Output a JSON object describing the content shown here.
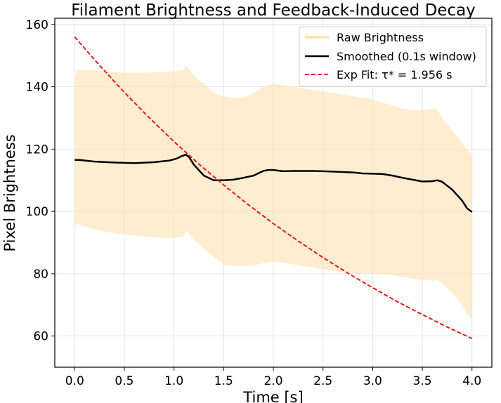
{
  "chart_data": {
    "type": "line",
    "title": "Filament Brightness and Feedback-Induced Decay",
    "xlabel": "Time [s]",
    "ylabel": "Pixel Brightness",
    "xlim": [
      -0.2,
      4.2
    ],
    "ylim": [
      50,
      162
    ],
    "xticks": [
      0.0,
      0.5,
      1.0,
      1.5,
      2.0,
      2.5,
      3.0,
      3.5,
      4.0
    ],
    "xtick_labels": [
      "0.0",
      "0.5",
      "1.0",
      "1.5",
      "2.0",
      "2.5",
      "3.0",
      "3.5",
      "4.0"
    ],
    "yticks": [
      60,
      80,
      100,
      120,
      140,
      160
    ],
    "ytick_labels": [
      "60",
      "80",
      "100",
      "120",
      "140",
      "160"
    ],
    "grid": true,
    "legend_position": "top-right",
    "series": [
      {
        "name": "Raw Brightness",
        "kind": "band",
        "color": "#ffe4b5",
        "x": [
          0.0,
          0.02,
          0.1,
          0.3,
          0.5,
          0.7,
          0.9,
          1.0,
          1.1,
          1.12,
          1.2,
          1.3,
          1.4,
          1.5,
          1.6,
          1.7,
          1.8,
          1.9,
          2.0,
          2.1,
          2.2,
          2.3,
          2.4,
          2.5,
          2.6,
          2.7,
          2.8,
          2.9,
          3.0,
          3.1,
          3.2,
          3.3,
          3.4,
          3.5,
          3.6,
          3.65,
          3.7,
          3.8,
          3.9,
          3.95,
          4.0
        ],
        "upper": [
          141,
          145.5,
          145.5,
          145,
          144.5,
          144.5,
          144.8,
          145,
          145.5,
          147,
          143.5,
          141,
          138,
          137,
          136.5,
          136.5,
          138,
          140,
          141,
          140.5,
          140,
          139.5,
          139,
          138.5,
          138,
          137.5,
          137,
          136.5,
          136,
          135,
          134,
          133,
          132.5,
          132.5,
          133,
          132.8,
          130,
          126,
          122,
          120,
          118
        ],
        "lower": [
          94,
          96,
          95,
          93.5,
          92.5,
          92,
          91.5,
          91.5,
          92,
          94,
          91,
          88,
          85.5,
          83,
          82.5,
          82.5,
          82.5,
          83.5,
          84,
          83.5,
          83,
          82.5,
          82,
          81.5,
          81,
          80.5,
          80.2,
          80,
          80,
          79.8,
          79.5,
          79,
          78.5,
          78,
          77.8,
          78,
          77,
          74,
          70,
          67,
          65.5
        ]
      },
      {
        "name": "Smoothed (0.1s window)",
        "kind": "line",
        "color": "#000000",
        "x": [
          0.0,
          0.05,
          0.2,
          0.4,
          0.6,
          0.8,
          0.95,
          1.03,
          1.08,
          1.12,
          1.15,
          1.2,
          1.3,
          1.4,
          1.5,
          1.6,
          1.7,
          1.8,
          1.9,
          1.95,
          2.0,
          2.1,
          2.2,
          2.4,
          2.6,
          2.8,
          2.9,
          3.0,
          3.1,
          3.2,
          3.3,
          3.4,
          3.5,
          3.6,
          3.65,
          3.7,
          3.8,
          3.9,
          3.95,
          4.0
        ],
        "y": [
          116.5,
          116.5,
          116,
          115.7,
          115.5,
          115.8,
          116.3,
          117,
          117.8,
          118.2,
          117.5,
          115,
          111.5,
          110,
          110,
          110.2,
          110.8,
          111.5,
          113,
          113.3,
          113.3,
          112.9,
          113,
          113,
          112.8,
          112.5,
          112.2,
          112.1,
          112,
          111.5,
          110.8,
          110.2,
          109.6,
          109.7,
          110,
          109.5,
          107,
          103.5,
          101,
          99.8
        ]
      },
      {
        "name": "Exp Fit: τ* = 1.956 s",
        "kind": "dashed-line",
        "color": "#ff0000",
        "x": [
          0.0,
          0.25,
          0.5,
          0.75,
          1.0,
          1.25,
          1.5,
          1.75,
          2.0,
          2.25,
          2.5,
          2.75,
          3.0,
          3.25,
          3.5,
          3.75,
          4.0
        ],
        "y": [
          156,
          146.9,
          138.2,
          130.1,
          122.4,
          115.2,
          108.5,
          102.1,
          96.1,
          90.5,
          85.2,
          80.2,
          75.5,
          71.0,
          66.9,
          62.9,
          59.2
        ]
      }
    ]
  }
}
